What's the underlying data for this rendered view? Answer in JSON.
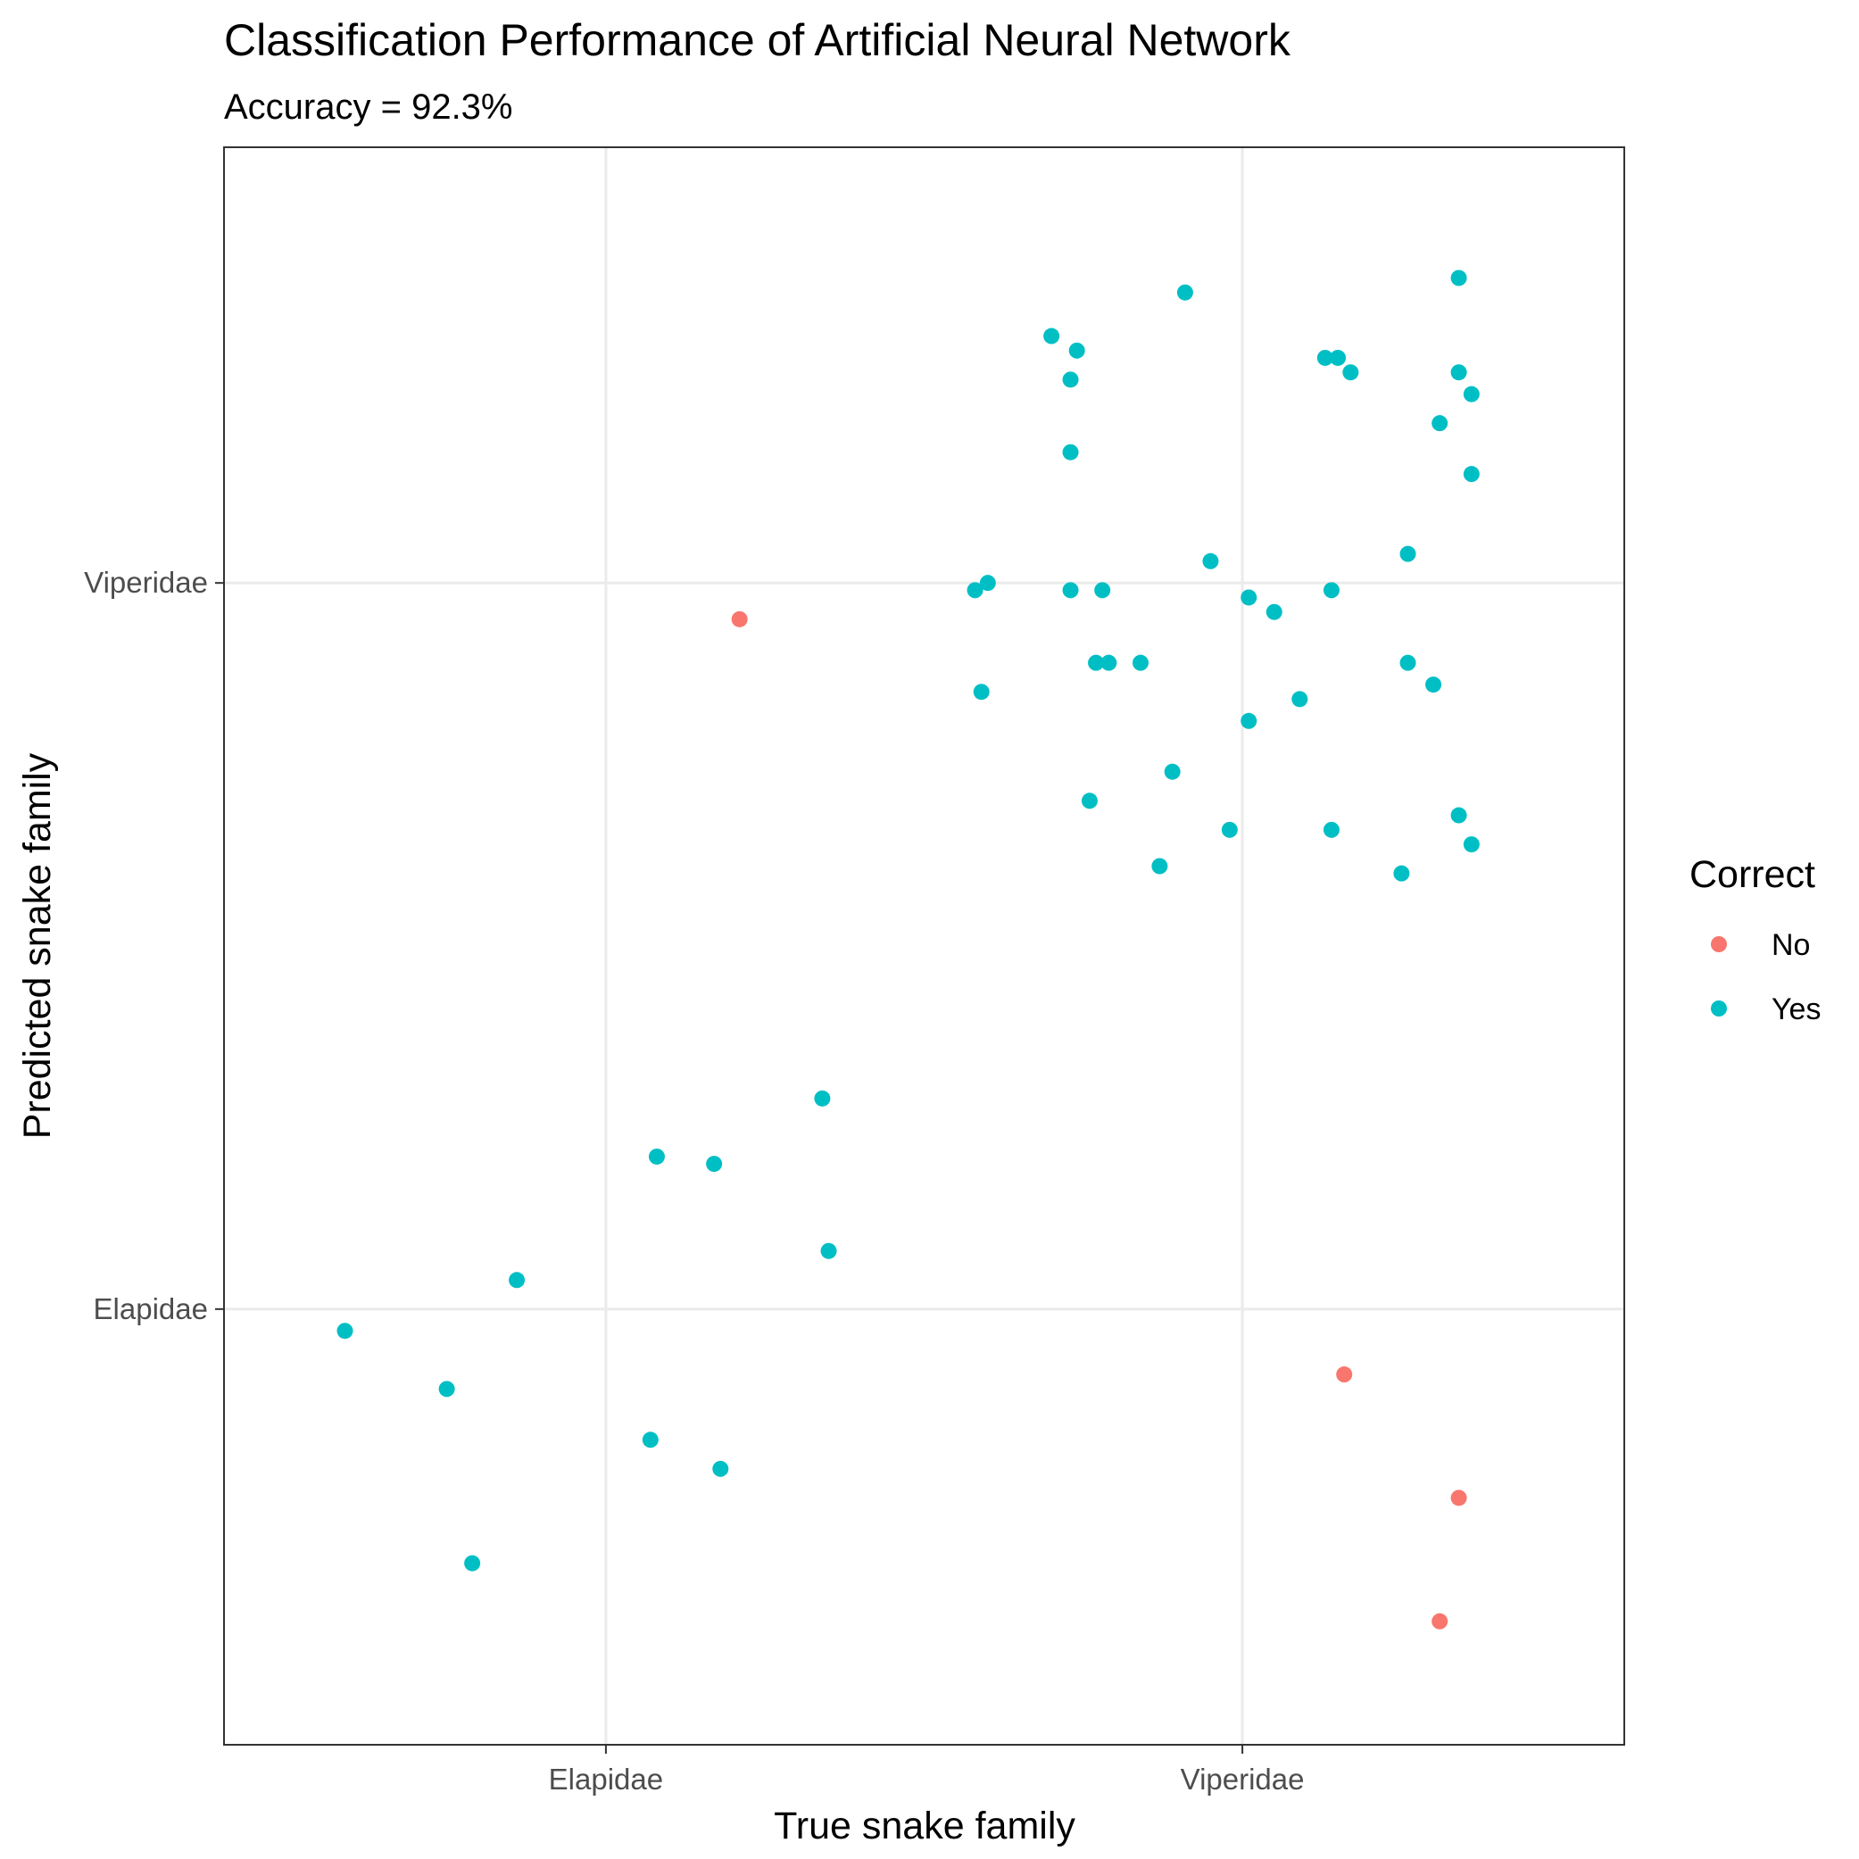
{
  "chart_data": {
    "type": "scatter",
    "title": "Classification Performance of Artificial Neural Network",
    "subtitle": "Accuracy = 92.3%",
    "xlabel": "True snake family",
    "ylabel": "Predicted snake family",
    "categories": [
      "Elapidae",
      "Viperidae"
    ],
    "xlim": [
      0.4,
      2.6
    ],
    "ylim": [
      0.4,
      2.6
    ],
    "grid": true,
    "legend": {
      "title": "Correct",
      "position": "right",
      "entries": [
        {
          "label": "No",
          "color": "#F8766D"
        },
        {
          "label": "Yes",
          "color": "#00BFC4"
        }
      ]
    },
    "series": [
      {
        "name": "No",
        "color": "#F8766D",
        "points": [
          [
            1.21,
            1.95
          ],
          [
            2.16,
            0.91
          ],
          [
            2.34,
            0.74
          ],
          [
            2.31,
            0.57
          ]
        ]
      },
      {
        "name": "Yes",
        "color": "#00BFC4",
        "points": [
          [
            0.59,
            0.97
          ],
          [
            0.75,
            0.89
          ],
          [
            0.86,
            1.04
          ],
          [
            0.79,
            0.65
          ],
          [
            1.08,
            1.21
          ],
          [
            1.17,
            1.2
          ],
          [
            1.34,
            1.29
          ],
          [
            1.35,
            1.08
          ],
          [
            1.07,
            0.82
          ],
          [
            1.18,
            0.78
          ],
          [
            1.91,
            2.4
          ],
          [
            1.7,
            2.34
          ],
          [
            1.74,
            2.32
          ],
          [
            1.73,
            2.28
          ],
          [
            1.73,
            2.18
          ],
          [
            1.58,
            1.99
          ],
          [
            1.6,
            2.0
          ],
          [
            1.73,
            1.99
          ],
          [
            1.78,
            1.99
          ],
          [
            1.59,
            1.85
          ],
          [
            1.76,
            1.7
          ],
          [
            1.77,
            1.89
          ],
          [
            1.79,
            1.89
          ],
          [
            1.84,
            1.89
          ],
          [
            1.89,
            1.74
          ],
          [
            1.87,
            1.61
          ],
          [
            2.15,
            2.31
          ],
          [
            2.17,
            2.29
          ],
          [
            2.13,
            2.31
          ],
          [
            2.34,
            2.42
          ],
          [
            2.34,
            2.29
          ],
          [
            2.36,
            2.26
          ],
          [
            2.31,
            2.22
          ],
          [
            2.36,
            2.15
          ],
          [
            1.95,
            2.03
          ],
          [
            2.01,
            1.98
          ],
          [
            2.05,
            1.96
          ],
          [
            2.14,
            1.99
          ],
          [
            2.26,
            2.04
          ],
          [
            2.26,
            1.89
          ],
          [
            2.3,
            1.86
          ],
          [
            2.09,
            1.84
          ],
          [
            2.01,
            1.81
          ],
          [
            1.98,
            1.66
          ],
          [
            2.14,
            1.66
          ],
          [
            2.34,
            1.68
          ],
          [
            2.36,
            1.64
          ],
          [
            2.25,
            1.6
          ]
        ]
      }
    ]
  }
}
